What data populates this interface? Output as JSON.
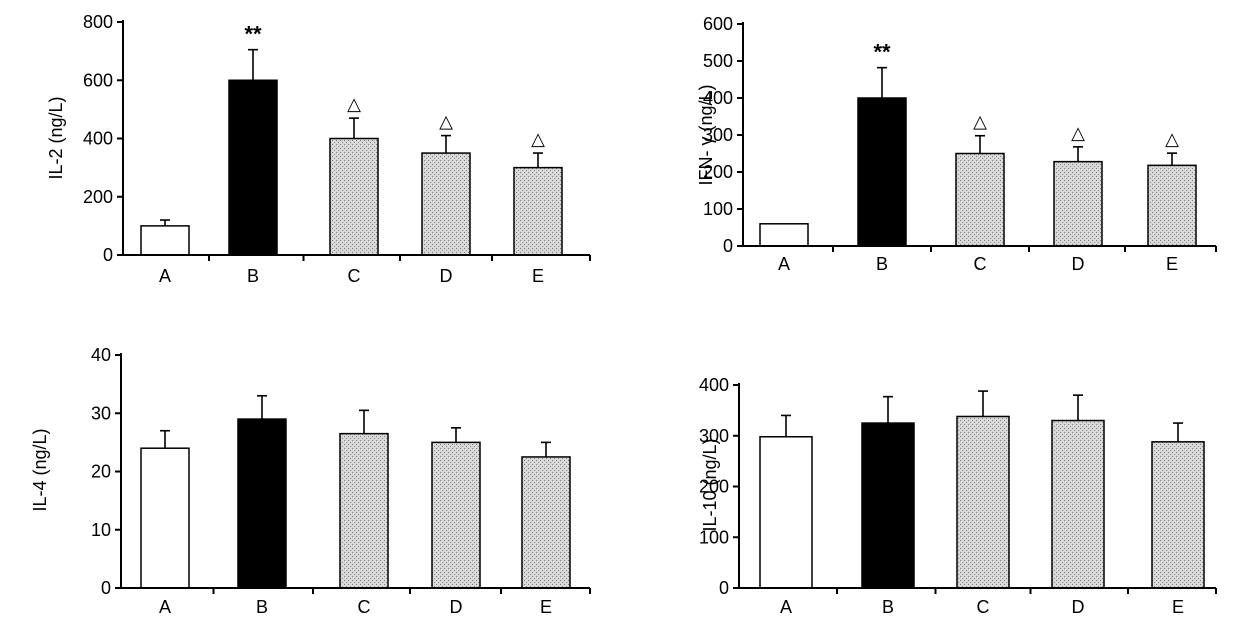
{
  "colors": {
    "axis": "#000000",
    "control_fill": "#ffffff",
    "model_fill": "#000000",
    "treatment_fill": "#d9d9d9",
    "treatment_dot": "#7a7a7a"
  },
  "chart_data": [
    {
      "type": "bar",
      "ylabel": "IL-2 (ng/L)",
      "ylim": [
        0,
        800
      ],
      "yticks": [
        0,
        200,
        400,
        600,
        800
      ],
      "categories": [
        "A",
        "B",
        "C",
        "D",
        "E"
      ],
      "values": [
        100,
        600,
        400,
        350,
        300
      ],
      "errors": [
        20,
        105,
        70,
        60,
        50
      ],
      "fills": [
        "white",
        "black",
        "stipple",
        "stipple",
        "stipple"
      ],
      "annotations": [
        "",
        "**",
        "△",
        "△",
        "△"
      ]
    },
    {
      "type": "bar",
      "ylabel": "IFN- γ (ng/L)",
      "ylim": [
        0,
        600
      ],
      "yticks": [
        0,
        100,
        200,
        300,
        400,
        500,
        600
      ],
      "categories": [
        "A",
        "B",
        "C",
        "D",
        "E"
      ],
      "values": [
        60,
        400,
        250,
        228,
        218
      ],
      "errors": [
        0,
        82,
        48,
        40,
        33
      ],
      "fills": [
        "white",
        "black",
        "stipple",
        "stipple",
        "stipple"
      ],
      "annotations": [
        "",
        "**",
        "△",
        "△",
        "△"
      ]
    },
    {
      "type": "bar",
      "ylabel": "IL-4 (ng/L)",
      "ylim": [
        0,
        40
      ],
      "yticks": [
        0,
        10,
        20,
        30,
        40
      ],
      "categories": [
        "A",
        "B",
        "C",
        "D",
        "E"
      ],
      "values": [
        24,
        29,
        26.5,
        25,
        22.5
      ],
      "errors": [
        3,
        4,
        4,
        2.5,
        2.5
      ],
      "fills": [
        "white",
        "black",
        "stipple",
        "stipple",
        "stipple"
      ],
      "annotations": [
        "",
        "",
        "",
        "",
        ""
      ]
    },
    {
      "type": "bar",
      "ylabel": "IL-10 (ng/L)",
      "ylim": [
        0,
        400
      ],
      "yticks": [
        0,
        100,
        200,
        300,
        400
      ],
      "categories": [
        "A",
        "B",
        "C",
        "D",
        "E"
      ],
      "values": [
        298,
        325,
        338,
        330,
        288
      ],
      "errors": [
        42,
        52,
        50,
        50,
        37
      ],
      "fills": [
        "white",
        "black",
        "stipple",
        "stipple",
        "stipple"
      ],
      "annotations": [
        "",
        "",
        "",
        "",
        ""
      ]
    }
  ]
}
